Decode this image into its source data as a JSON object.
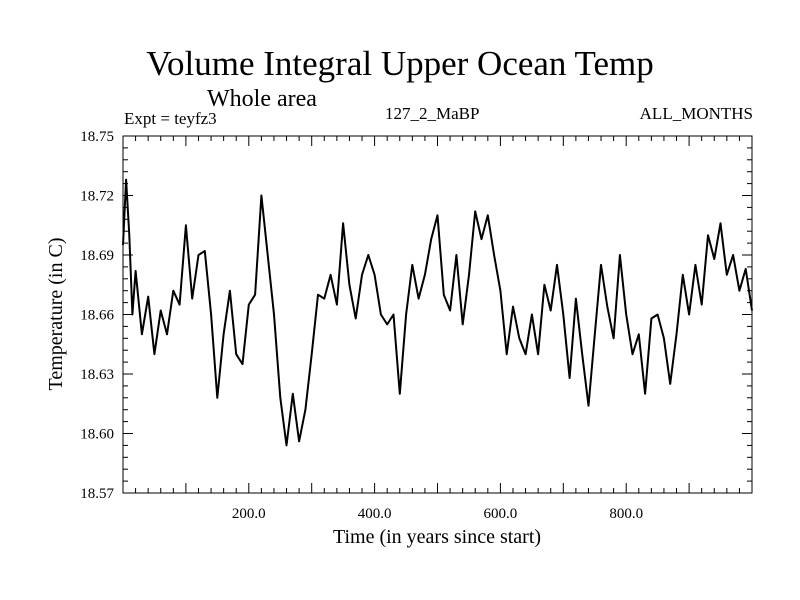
{
  "chart_data": {
    "type": "line",
    "title": "Volume Integral Upper Ocean Temp",
    "subtitle": "Whole area",
    "header_left": "Expt = teyfz3",
    "header_center": "127_2_MaBP",
    "header_right": "ALL_MONTHS",
    "xlabel": "Time (in years since start)",
    "ylabel": "Temperature (in C)",
    "xlim": [
      0,
      1000
    ],
    "ylim": [
      18.57,
      18.75
    ],
    "xticks": [
      "200.0",
      "400.0",
      "600.0",
      "800.0"
    ],
    "yticks": [
      "18.57",
      "18.60",
      "18.63",
      "18.66",
      "18.69",
      "18.72",
      "18.75"
    ],
    "grid": false,
    "series": [
      {
        "name": "Volume integral upper ocean temperature",
        "color": "#000000",
        "x": [
          0,
          5,
          10,
          15,
          20,
          30,
          40,
          50,
          60,
          70,
          80,
          90,
          100,
          110,
          120,
          130,
          140,
          150,
          160,
          170,
          180,
          190,
          200,
          210,
          220,
          230,
          240,
          250,
          260,
          270,
          280,
          290,
          300,
          310,
          320,
          330,
          340,
          350,
          360,
          370,
          380,
          390,
          400,
          410,
          420,
          430,
          440,
          450,
          460,
          470,
          480,
          490,
          500,
          510,
          520,
          530,
          540,
          550,
          560,
          570,
          580,
          590,
          600,
          610,
          620,
          630,
          640,
          650,
          660,
          670,
          680,
          690,
          700,
          710,
          720,
          730,
          740,
          750,
          760,
          770,
          780,
          790,
          800,
          810,
          820,
          830,
          840,
          850,
          860,
          870,
          880,
          890,
          900,
          910,
          920,
          930,
          940,
          950,
          960,
          970,
          980,
          990,
          1000
        ],
        "values": [
          18.695,
          18.728,
          18.7,
          18.66,
          18.682,
          18.65,
          18.669,
          18.64,
          18.662,
          18.65,
          18.672,
          18.665,
          18.705,
          18.668,
          18.69,
          18.692,
          18.66,
          18.618,
          18.65,
          18.672,
          18.64,
          18.635,
          18.665,
          18.67,
          18.72,
          18.69,
          18.66,
          18.618,
          18.594,
          18.62,
          18.596,
          18.612,
          18.64,
          18.67,
          18.668,
          18.68,
          18.665,
          18.706,
          18.675,
          18.658,
          18.68,
          18.69,
          18.68,
          18.66,
          18.655,
          18.66,
          18.62,
          18.66,
          18.685,
          18.668,
          18.68,
          18.698,
          18.71,
          18.67,
          18.662,
          18.69,
          18.655,
          18.68,
          18.712,
          18.698,
          18.71,
          18.69,
          18.672,
          18.64,
          18.664,
          18.648,
          18.64,
          18.66,
          18.64,
          18.675,
          18.662,
          18.685,
          18.66,
          18.628,
          18.668,
          18.64,
          18.614,
          18.65,
          18.685,
          18.664,
          18.648,
          18.69,
          18.66,
          18.64,
          18.65,
          18.62,
          18.658,
          18.66,
          18.648,
          18.625,
          18.65,
          18.68,
          18.66,
          18.685,
          18.665,
          18.7,
          18.688,
          18.706,
          18.68,
          18.69,
          18.672,
          18.683,
          18.662
        ]
      }
    ]
  }
}
